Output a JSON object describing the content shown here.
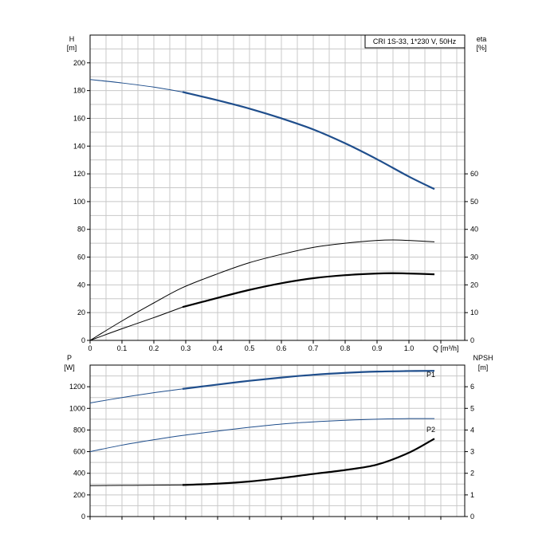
{
  "chart_data": [
    {
      "type": "line",
      "title": "CRI 1S-33, 1*230 V, 50Hz",
      "x_axis": {
        "label": "Q [m³/h]",
        "ticks": [
          "0",
          "0.1",
          "0.2",
          "0.3",
          "0.4",
          "0.5",
          "0.6",
          "0.7",
          "0.8",
          "0.9",
          "1.0"
        ],
        "range": [
          0,
          1.175
        ]
      },
      "y_left": {
        "label_top": "H",
        "label_unit": "[m]",
        "ticks": [
          "0",
          "20",
          "40",
          "60",
          "80",
          "100",
          "120",
          "140",
          "160",
          "180",
          "200"
        ],
        "range": [
          0,
          220
        ]
      },
      "y_right": {
        "label_top": "eta",
        "label_unit": "[%]",
        "ticks": [
          "0",
          "10",
          "20",
          "30",
          "40",
          "50",
          "60"
        ],
        "range": [
          0,
          110
        ]
      },
      "grid": true,
      "series": [
        {
          "axis": "left",
          "color": "#1f4e8c",
          "start_bold": 0.29,
          "points": [
            [
              0,
              188
            ],
            [
              0.1,
              185.5
            ],
            [
              0.2,
              182.5
            ],
            [
              0.29,
              179
            ],
            [
              0.4,
              173
            ],
            [
              0.5,
              167
            ],
            [
              0.6,
              160
            ],
            [
              0.7,
              152
            ],
            [
              0.8,
              142
            ],
            [
              0.9,
              130.5
            ],
            [
              1.0,
              118
            ],
            [
              1.08,
              109
            ]
          ]
        },
        {
          "axis": "right",
          "color": "#000000",
          "start_bold": 1.2,
          "points": [
            [
              0,
              0
            ],
            [
              0.1,
              7
            ],
            [
              0.2,
              13.5
            ],
            [
              0.29,
              19
            ],
            [
              0.4,
              24
            ],
            [
              0.5,
              28
            ],
            [
              0.6,
              31
            ],
            [
              0.7,
              33.5
            ],
            [
              0.8,
              35
            ],
            [
              0.9,
              36
            ],
            [
              0.95,
              36.2
            ],
            [
              1.0,
              36
            ],
            [
              1.08,
              35.5
            ]
          ]
        },
        {
          "axis": "right",
          "color": "#000000",
          "start_bold": 0.29,
          "points": [
            [
              0,
              0
            ],
            [
              0.1,
              4.2
            ],
            [
              0.2,
              8.2
            ],
            [
              0.29,
              12
            ],
            [
              0.4,
              15.3
            ],
            [
              0.5,
              18.2
            ],
            [
              0.6,
              20.6
            ],
            [
              0.7,
              22.4
            ],
            [
              0.8,
              23.5
            ],
            [
              0.9,
              24.1
            ],
            [
              0.95,
              24.2
            ],
            [
              1.0,
              24.1
            ],
            [
              1.08,
              23.8
            ]
          ]
        }
      ]
    },
    {
      "type": "line",
      "x_axis": {
        "range": [
          0,
          1.175
        ]
      },
      "y_left": {
        "label_top": "P",
        "label_unit": "[W]",
        "ticks": [
          "0",
          "200",
          "400",
          "600",
          "800",
          "1000",
          "1200"
        ],
        "range": [
          0,
          1400
        ]
      },
      "y_right": {
        "label_top": "NPSH",
        "label_unit": "[m]",
        "ticks": [
          "0",
          "1",
          "2",
          "3",
          "4",
          "5",
          "6"
        ],
        "range": [
          0,
          7
        ]
      },
      "grid": true,
      "series": [
        {
          "name": "P1",
          "axis": "left",
          "color": "#1f4e8c",
          "start_bold": 0.29,
          "points": [
            [
              0,
              1050
            ],
            [
              0.1,
              1100
            ],
            [
              0.2,
              1145
            ],
            [
              0.29,
              1180
            ],
            [
              0.4,
              1220
            ],
            [
              0.5,
              1255
            ],
            [
              0.6,
              1285
            ],
            [
              0.7,
              1310
            ],
            [
              0.8,
              1328
            ],
            [
              0.9,
              1340
            ],
            [
              1.0,
              1345
            ],
            [
              1.08,
              1347
            ]
          ]
        },
        {
          "name": "P2",
          "axis": "left",
          "color": "#1f4e8c",
          "start_bold": 1.2,
          "points": [
            [
              0,
              600
            ],
            [
              0.1,
              660
            ],
            [
              0.2,
              710
            ],
            [
              0.29,
              750
            ],
            [
              0.4,
              790
            ],
            [
              0.5,
              825
            ],
            [
              0.6,
              855
            ],
            [
              0.7,
              875
            ],
            [
              0.8,
              890
            ],
            [
              0.9,
              900
            ],
            [
              1.0,
              905
            ],
            [
              1.08,
              905
            ]
          ]
        },
        {
          "axis": "right",
          "color": "#000000",
          "start_bold": 0.29,
          "points": [
            [
              0,
              1.43
            ],
            [
              0.1,
              1.44
            ],
            [
              0.2,
              1.45
            ],
            [
              0.29,
              1.46
            ],
            [
              0.4,
              1.52
            ],
            [
              0.5,
              1.62
            ],
            [
              0.6,
              1.78
            ],
            [
              0.7,
              1.97
            ],
            [
              0.8,
              2.15
            ],
            [
              0.9,
              2.4
            ],
            [
              1.0,
              2.95
            ],
            [
              1.08,
              3.6
            ]
          ]
        }
      ]
    }
  ]
}
